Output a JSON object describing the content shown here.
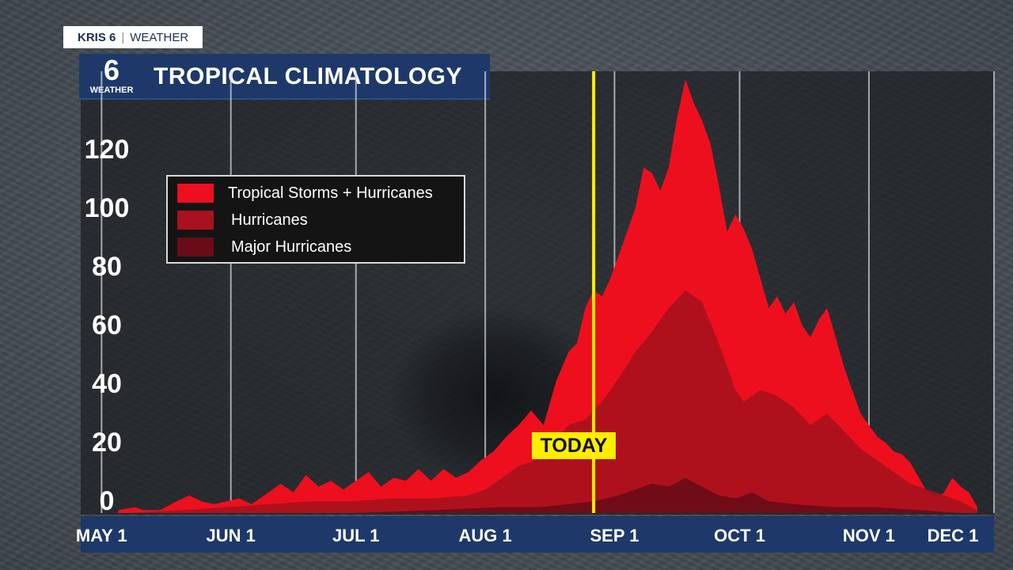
{
  "brand": {
    "station": "KRIS 6",
    "section": "WEATHER"
  },
  "logo": {
    "number": "6",
    "label": "WEATHER"
  },
  "title": "TROPICAL CLIMATOLOGY",
  "today_label": "TODAY",
  "colors": {
    "tropical_storms_hurricanes": "#ee0f1e",
    "hurricanes": "#a9111c",
    "major_hurricanes": "#6a0c18",
    "today_line": "#ffee00",
    "title_bar": "#1e3869"
  },
  "chart_data": {
    "type": "area",
    "title": "TROPICAL CLIMATOLOGY",
    "xlabel": "",
    "ylabel": "",
    "x_tick_labels": [
      "MAY 1",
      "JUN 1",
      "JUL 1",
      "AUG 1",
      "SEP 1",
      "OCT 1",
      "NOV 1",
      "DEC 1"
    ],
    "y_tick_labels": [
      "0",
      "20",
      "40",
      "60",
      "80",
      "100",
      "120"
    ],
    "ylim": [
      0,
      150
    ],
    "x_unit": "days since May 1",
    "xlim": [
      -5,
      214
    ],
    "grid": "vertical",
    "legend_position": "top-left",
    "today_day": 118,
    "series": [
      {
        "name": "Tropical Storms + Hurricanes",
        "color": "#ee0f1e",
        "points": [
          [
            4,
            1
          ],
          [
            8,
            2
          ],
          [
            10,
            1
          ],
          [
            14,
            1
          ],
          [
            18,
            4
          ],
          [
            21,
            6
          ],
          [
            24,
            4
          ],
          [
            27,
            3
          ],
          [
            30,
            4
          ],
          [
            33,
            5
          ],
          [
            36,
            3
          ],
          [
            40,
            7
          ],
          [
            43,
            10
          ],
          [
            46,
            7
          ],
          [
            49,
            13
          ],
          [
            52,
            9
          ],
          [
            55,
            11
          ],
          [
            58,
            8
          ],
          [
            61,
            11
          ],
          [
            64,
            14
          ],
          [
            67,
            9
          ],
          [
            70,
            12
          ],
          [
            73,
            11
          ],
          [
            76,
            15
          ],
          [
            79,
            11
          ],
          [
            82,
            15
          ],
          [
            85,
            12
          ],
          [
            88,
            14
          ],
          [
            91,
            18
          ],
          [
            94,
            21
          ],
          [
            97,
            26
          ],
          [
            100,
            30
          ],
          [
            103,
            35
          ],
          [
            106,
            30
          ],
          [
            109,
            45
          ],
          [
            112,
            55
          ],
          [
            114,
            58
          ],
          [
            116,
            70
          ],
          [
            118,
            76
          ],
          [
            120,
            74
          ],
          [
            122,
            80
          ],
          [
            124,
            88
          ],
          [
            126,
            96
          ],
          [
            128,
            104
          ],
          [
            130,
            118
          ],
          [
            132,
            116
          ],
          [
            134,
            110
          ],
          [
            136,
            118
          ],
          [
            138,
            135
          ],
          [
            140,
            148
          ],
          [
            142,
            140
          ],
          [
            144,
            134
          ],
          [
            146,
            126
          ],
          [
            148,
            112
          ],
          [
            150,
            96
          ],
          [
            152,
            102
          ],
          [
            154,
            97
          ],
          [
            156,
            90
          ],
          [
            158,
            80
          ],
          [
            160,
            70
          ],
          [
            162,
            74
          ],
          [
            164,
            68
          ],
          [
            166,
            72
          ],
          [
            168,
            64
          ],
          [
            170,
            60
          ],
          [
            172,
            66
          ],
          [
            174,
            70
          ],
          [
            176,
            60
          ],
          [
            178,
            50
          ],
          [
            180,
            42
          ],
          [
            182,
            34
          ],
          [
            184,
            30
          ],
          [
            186,
            26
          ],
          [
            188,
            24
          ],
          [
            190,
            21
          ],
          [
            192,
            20
          ],
          [
            194,
            17
          ],
          [
            196,
            12
          ],
          [
            198,
            7
          ],
          [
            200,
            5
          ],
          [
            202,
            7
          ],
          [
            204,
            12
          ],
          [
            206,
            9
          ],
          [
            208,
            7
          ],
          [
            210,
            2
          ]
        ]
      },
      {
        "name": "Hurricanes",
        "color": "#a9111c",
        "points": [
          [
            6,
            0
          ],
          [
            20,
            1
          ],
          [
            30,
            2
          ],
          [
            40,
            3
          ],
          [
            50,
            4
          ],
          [
            60,
            4
          ],
          [
            70,
            5
          ],
          [
            80,
            5
          ],
          [
            88,
            6
          ],
          [
            92,
            8
          ],
          [
            96,
            12
          ],
          [
            100,
            16
          ],
          [
            104,
            18
          ],
          [
            108,
            24
          ],
          [
            112,
            30
          ],
          [
            116,
            32
          ],
          [
            120,
            38
          ],
          [
            124,
            46
          ],
          [
            128,
            55
          ],
          [
            132,
            62
          ],
          [
            136,
            70
          ],
          [
            140,
            76
          ],
          [
            144,
            72
          ],
          [
            148,
            58
          ],
          [
            150,
            50
          ],
          [
            152,
            42
          ],
          [
            154,
            38
          ],
          [
            158,
            42
          ],
          [
            162,
            40
          ],
          [
            166,
            36
          ],
          [
            170,
            30
          ],
          [
            174,
            34
          ],
          [
            178,
            28
          ],
          [
            182,
            22
          ],
          [
            186,
            18
          ],
          [
            190,
            14
          ],
          [
            194,
            10
          ],
          [
            198,
            8
          ],
          [
            202,
            6
          ],
          [
            206,
            4
          ],
          [
            210,
            1
          ]
        ]
      },
      {
        "name": "Major Hurricanes",
        "color": "#6a0c18",
        "points": [
          [
            30,
            0
          ],
          [
            60,
            0
          ],
          [
            80,
            1
          ],
          [
            95,
            2
          ],
          [
            105,
            2
          ],
          [
            112,
            3
          ],
          [
            118,
            4
          ],
          [
            124,
            6
          ],
          [
            128,
            8
          ],
          [
            132,
            10
          ],
          [
            136,
            9
          ],
          [
            140,
            12
          ],
          [
            144,
            9
          ],
          [
            148,
            6
          ],
          [
            152,
            5
          ],
          [
            156,
            7
          ],
          [
            160,
            4
          ],
          [
            166,
            3
          ],
          [
            176,
            2
          ],
          [
            186,
            2
          ],
          [
            196,
            1
          ],
          [
            206,
            0
          ]
        ]
      }
    ]
  }
}
